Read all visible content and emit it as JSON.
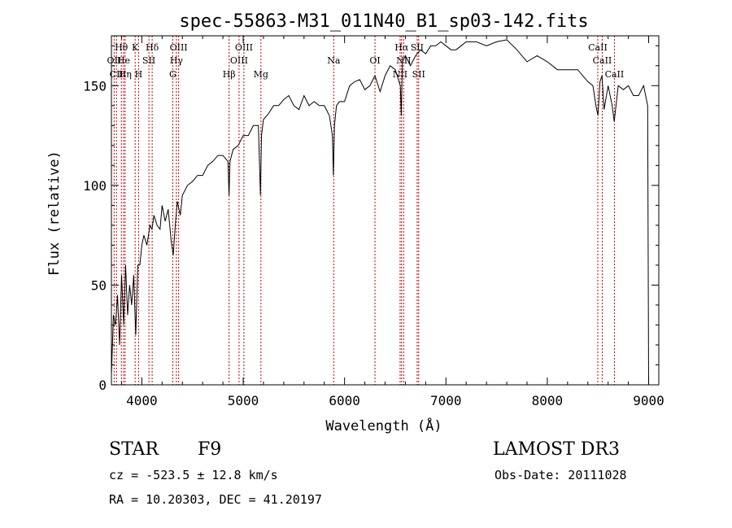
{
  "chart_data": {
    "type": "line",
    "title": "spec-55863-M31_011N40_B1_sp03-142.fits",
    "xlabel": "Wavelength (Å)",
    "ylabel": "Flux (relative)",
    "xlim": [
      3700,
      9100
    ],
    "ylim": [
      0,
      175
    ],
    "xticks": [
      4000,
      5000,
      6000,
      7000,
      8000,
      9000
    ],
    "yticks": [
      0,
      50,
      100,
      150
    ],
    "grid": false,
    "line_color": "#000000",
    "marker_color": "#cc0000",
    "spectrum": {
      "x": [
        3700,
        3720,
        3740,
        3760,
        3780,
        3800,
        3820,
        3840,
        3860,
        3880,
        3900,
        3920,
        3940,
        3960,
        3980,
        4000,
        4020,
        4050,
        4080,
        4100,
        4120,
        4150,
        4180,
        4200,
        4230,
        4260,
        4290,
        4310,
        4330,
        4350,
        4380,
        4400,
        4450,
        4500,
        4550,
        4600,
        4650,
        4700,
        4750,
        4800,
        4850,
        4860,
        4870,
        4900,
        4950,
        5000,
        5050,
        5100,
        5150,
        5170,
        5180,
        5200,
        5250,
        5300,
        5350,
        5400,
        5450,
        5500,
        5550,
        5600,
        5650,
        5700,
        5750,
        5800,
        5850,
        5880,
        5890,
        5900,
        5920,
        5950,
        6000,
        6050,
        6100,
        6150,
        6200,
        6250,
        6300,
        6350,
        6400,
        6450,
        6500,
        6550,
        6560,
        6570,
        6600,
        6650,
        6700,
        6750,
        6800,
        6850,
        6900,
        6950,
        7000,
        7050,
        7100,
        7150,
        7200,
        7300,
        7400,
        7500,
        7600,
        7700,
        7800,
        7900,
        8000,
        8100,
        8200,
        8300,
        8400,
        8450,
        8480,
        8500,
        8520,
        8540,
        8560,
        8600,
        8640,
        8660,
        8700,
        8750,
        8800,
        8850,
        8900,
        8950,
        8990,
        9000
      ],
      "y": [
        5,
        35,
        30,
        45,
        20,
        55,
        30,
        60,
        35,
        50,
        40,
        55,
        25,
        60,
        60,
        70,
        75,
        70,
        80,
        78,
        85,
        80,
        78,
        90,
        82,
        88,
        72,
        65,
        80,
        92,
        85,
        95,
        100,
        102,
        105,
        105,
        110,
        112,
        115,
        115,
        112,
        95,
        112,
        118,
        120,
        125,
        125,
        130,
        130,
        95,
        125,
        133,
        136,
        140,
        140,
        143,
        145,
        140,
        138,
        145,
        140,
        142,
        140,
        140,
        135,
        125,
        105,
        130,
        140,
        142,
        142,
        150,
        152,
        153,
        148,
        150,
        155,
        147,
        155,
        160,
        158,
        150,
        135,
        162,
        165,
        160,
        165,
        168,
        166,
        170,
        170,
        172,
        170,
        168,
        168,
        170,
        172,
        172,
        170,
        172,
        173,
        168,
        162,
        165,
        162,
        158,
        158,
        158,
        152,
        150,
        140,
        135,
        152,
        155,
        138,
        150,
        140,
        132,
        150,
        148,
        150,
        145,
        145,
        150,
        140,
        0
      ]
    },
    "lines": [
      {
        "label": "Hθ",
        "x": 3798,
        "row": 1
      },
      {
        "label": "K",
        "x": 3934,
        "row": 1
      },
      {
        "label": "Hδ",
        "x": 4102,
        "row": 1
      },
      {
        "label": "OIII",
        "x": 4363,
        "row": 1
      },
      {
        "label": "OIII",
        "x": 5007,
        "row": 1
      },
      {
        "label": "OI",
        "x": 6300,
        "row": 2
      },
      {
        "label": "Hα",
        "x": 6563,
        "row": 1
      },
      {
        "label": "SII",
        "x": 6716,
        "row": 1
      },
      {
        "label": "CaII",
        "x": 8498,
        "row": 1
      },
      {
        "label": "OII",
        "x": 3727,
        "row": 2
      },
      {
        "label": "He",
        "x": 3820,
        "row": 2
      },
      {
        "label": "SII",
        "x": 4070,
        "row": 2
      },
      {
        "label": "Hγ",
        "x": 4341,
        "row": 2
      },
      {
        "label": "OIII",
        "x": 4959,
        "row": 2
      },
      {
        "label": "Na",
        "x": 5893,
        "row": 2
      },
      {
        "label": "NII",
        "x": 6583,
        "row": 2
      },
      {
        "label": "CaII",
        "x": 8542,
        "row": 2
      },
      {
        "label": "CII",
        "x": 3750,
        "row": 3
      },
      {
        "label": "Hη",
        "x": 3835,
        "row": 3
      },
      {
        "label": "H",
        "x": 3968,
        "row": 3
      },
      {
        "label": "G",
        "x": 4305,
        "row": 3
      },
      {
        "label": "Hβ",
        "x": 4861,
        "row": 3
      },
      {
        "label": "Mg",
        "x": 5175,
        "row": 3
      },
      {
        "label": "NII",
        "x": 6548,
        "row": 3
      },
      {
        "label": "SII",
        "x": 6731,
        "row": 3
      },
      {
        "label": "CaII",
        "x": 8662,
        "row": 3
      }
    ]
  },
  "info": {
    "object_class": "STAR",
    "subclass": "F9",
    "survey": "LAMOST DR3",
    "cz": "cz = -523.5 ± 12.8 km/s",
    "obs_date": "Obs-Date: 20111028",
    "radec": "RA =  10.20303, DEC =  41.20197"
  }
}
